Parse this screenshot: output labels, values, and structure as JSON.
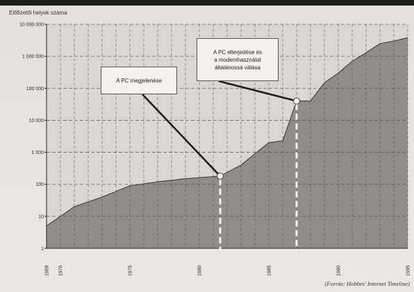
{
  "chart_data": {
    "type": "area",
    "ylabel": "Előfizetői helyek száma",
    "yscale": "log",
    "ylim": [
      1,
      10000000
    ],
    "xlim": [
      1969,
      1995
    ],
    "y_ticks": [
      {
        "value": 1,
        "label": "1"
      },
      {
        "value": 10,
        "label": "10"
      },
      {
        "value": 100,
        "label": "100"
      },
      {
        "value": 1000,
        "label": "1 000"
      },
      {
        "value": 10000,
        "label": "10 000"
      },
      {
        "value": 100000,
        "label": "100 000"
      },
      {
        "value": 1000000,
        "label": "1 000 000"
      },
      {
        "value": 10000000,
        "label": "10 000 000"
      }
    ],
    "x_ticks": [
      {
        "value": 1969,
        "label": "1969"
      },
      {
        "value": 1970,
        "label": "1970"
      },
      {
        "value": 1975,
        "label": "1975"
      },
      {
        "value": 1980,
        "label": "1980"
      },
      {
        "value": 1985,
        "label": "1985"
      },
      {
        "value": 1990,
        "label": "1990"
      },
      {
        "value": 1995,
        "label": "1995"
      }
    ],
    "grid": true,
    "series": [
      {
        "points": [
          [
            1969,
            5
          ],
          [
            1970,
            10
          ],
          [
            1971,
            20
          ],
          [
            1973,
            40
          ],
          [
            1975,
            90
          ],
          [
            1977,
            120
          ],
          [
            1979,
            150
          ],
          [
            1981.5,
            180
          ],
          [
            1983,
            400
          ],
          [
            1984,
            900
          ],
          [
            1985,
            2000
          ],
          [
            1986,
            2300
          ],
          [
            1987,
            40000
          ],
          [
            1988,
            40000
          ],
          [
            1989,
            150000
          ],
          [
            1990,
            300000
          ],
          [
            1991,
            700000
          ],
          [
            1992,
            1300000
          ],
          [
            1993,
            2500000
          ],
          [
            1994,
            3000000
          ],
          [
            1995,
            3800000
          ]
        ]
      }
    ],
    "annotations": [
      {
        "text": "A PC megjelenése",
        "x": 1981.5,
        "y": 180
      },
      {
        "text": "A PC elterjedése és a modemhasználat általánossá válása",
        "x": 1987,
        "y": 40000
      }
    ]
  },
  "annotation_lines": {
    "pc": [
      "A PC megjelenése"
    ],
    "modem": [
      "A PC elterjedése és",
      "a modemhasználat",
      "általánossá válása"
    ]
  },
  "source": "(Forrás: Hobbes' Internet Timeline)",
  "colors": {
    "area_fill": "#8f8d89",
    "plot_bg": "#d9d7d3",
    "grid": "#4a4a4a",
    "line": "#333333"
  }
}
